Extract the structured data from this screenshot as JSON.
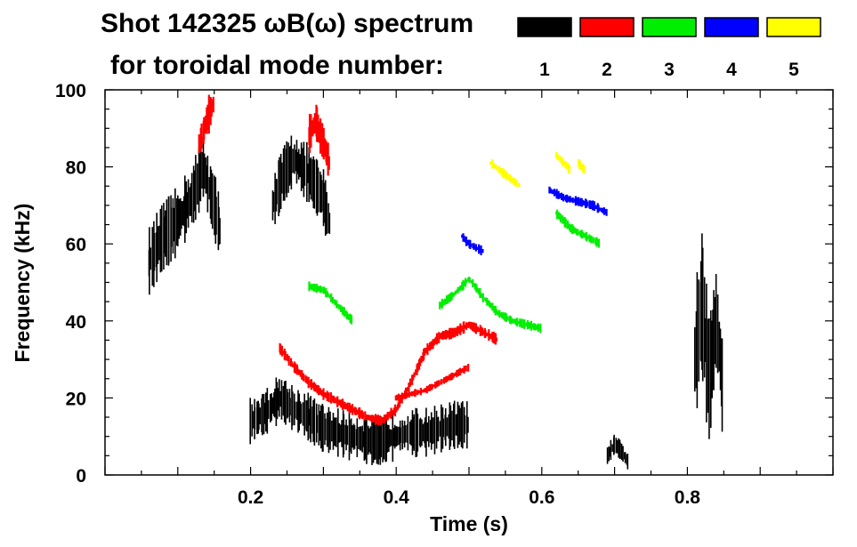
{
  "chart_data": {
    "type": "scatter",
    "title_line1": "Shot 142325 ωB(ω) spectrum",
    "title_line2": "for toroidal mode number:",
    "xlabel": "Time (s)",
    "ylabel": "Frequency (kHz)",
    "xlim": [
      0.0,
      1.0
    ],
    "ylim": [
      0,
      100
    ],
    "xticks": [
      0.2,
      0.4,
      0.6,
      0.8
    ],
    "xtick_labels": [
      "0.2",
      "0.4",
      "0.6",
      "0.8"
    ],
    "yticks": [
      0,
      20,
      40,
      60,
      80,
      100
    ],
    "ytick_labels": [
      "0",
      "20",
      "40",
      "60",
      "80",
      "100"
    ],
    "legend": [
      {
        "label": "1",
        "color": "#000000"
      },
      {
        "label": "2",
        "color": "#ff0000"
      },
      {
        "label": "3",
        "color": "#00ee00"
      },
      {
        "label": "4",
        "color": "#0000ff"
      },
      {
        "label": "5",
        "color": "#ffff00"
      }
    ],
    "series": [
      {
        "name": "1",
        "color": "#000000",
        "tracks": [
          {
            "x": [
              0.06,
              0.08,
              0.1,
              0.12,
              0.135,
              0.15,
              0.16
            ],
            "y": [
              55,
              62,
              66,
              72,
              80,
              70,
              62
            ],
            "spread": 7
          },
          {
            "x": [
              0.23,
              0.245,
              0.26,
              0.28,
              0.3,
              0.31
            ],
            "y": [
              70,
              78,
              82,
              78,
              72,
              64
            ],
            "spread": 6
          },
          {
            "x": [
              0.2,
              0.22,
              0.24,
              0.26,
              0.28,
              0.3,
              0.32,
              0.34,
              0.36,
              0.38,
              0.4,
              0.42,
              0.44,
              0.46,
              0.48,
              0.5
            ],
            "y": [
              14,
              16,
              20,
              17,
              15,
              12,
              11,
              10,
              9,
              9,
              10,
              11,
              11,
              12,
              13,
              13
            ],
            "spread": 5
          },
          {
            "x": [
              0.69,
              0.7,
              0.71,
              0.72
            ],
            "y": [
              5,
              8,
              6,
              3
            ],
            "spread": 2
          },
          {
            "x": [
              0.81,
              0.82,
              0.83,
              0.84,
              0.85
            ],
            "y": [
              30,
              45,
              25,
              40,
              20
            ],
            "spread": 14
          }
        ]
      },
      {
        "name": "2",
        "color": "#ff0000",
        "tracks": [
          {
            "x": [
              0.13,
              0.14,
              0.15
            ],
            "y": [
              86,
              92,
              97
            ],
            "spread": 4
          },
          {
            "x": [
              0.28,
              0.29,
              0.3,
              0.31
            ],
            "y": [
              88,
              92,
              86,
              80
            ],
            "spread": 4
          },
          {
            "x": [
              0.24,
              0.26,
              0.28,
              0.3,
              0.32,
              0.34,
              0.36,
              0.38,
              0.4,
              0.42,
              0.44,
              0.46,
              0.48,
              0.5,
              0.52,
              0.54
            ],
            "y": [
              33,
              28,
              24,
              21,
              19,
              17,
              15,
              14,
              17,
              24,
              32,
              36,
              37,
              39,
              37,
              35
            ],
            "spread": 1.2
          },
          {
            "x": [
              0.4,
              0.42,
              0.44,
              0.46,
              0.48,
              0.5
            ],
            "y": [
              20,
              21,
              22,
              24,
              26,
              28
            ],
            "spread": 0.8
          }
        ]
      },
      {
        "name": "3",
        "color": "#00ee00",
        "tracks": [
          {
            "x": [
              0.28,
              0.3,
              0.32,
              0.34
            ],
            "y": [
              49,
              48,
              44,
              40
            ],
            "spread": 1
          },
          {
            "x": [
              0.46,
              0.48,
              0.5,
              0.52,
              0.54,
              0.56,
              0.58,
              0.6
            ],
            "y": [
              44,
              47,
              51,
              46,
              42,
              40,
              39,
              38
            ],
            "spread": 1
          },
          {
            "x": [
              0.62,
              0.64,
              0.66,
              0.68
            ],
            "y": [
              68,
              64,
              62,
              60
            ],
            "spread": 1
          }
        ]
      },
      {
        "name": "4",
        "color": "#0000ff",
        "tracks": [
          {
            "x": [
              0.49,
              0.5,
              0.52
            ],
            "y": [
              62,
              60,
              58
            ],
            "spread": 1
          },
          {
            "x": [
              0.61,
              0.63,
              0.65,
              0.67,
              0.69
            ],
            "y": [
              74,
              72,
              71,
              70,
              68
            ],
            "spread": 1
          }
        ]
      },
      {
        "name": "5",
        "color": "#ffff00",
        "tracks": [
          {
            "x": [
              0.53,
              0.55,
              0.57
            ],
            "y": [
              81,
              78,
              75
            ],
            "spread": 1
          },
          {
            "x": [
              0.62,
              0.64
            ],
            "y": [
              83,
              79
            ],
            "spread": 1
          },
          {
            "x": [
              0.65,
              0.66
            ],
            "y": [
              81,
              79
            ],
            "spread": 1
          }
        ]
      }
    ]
  }
}
